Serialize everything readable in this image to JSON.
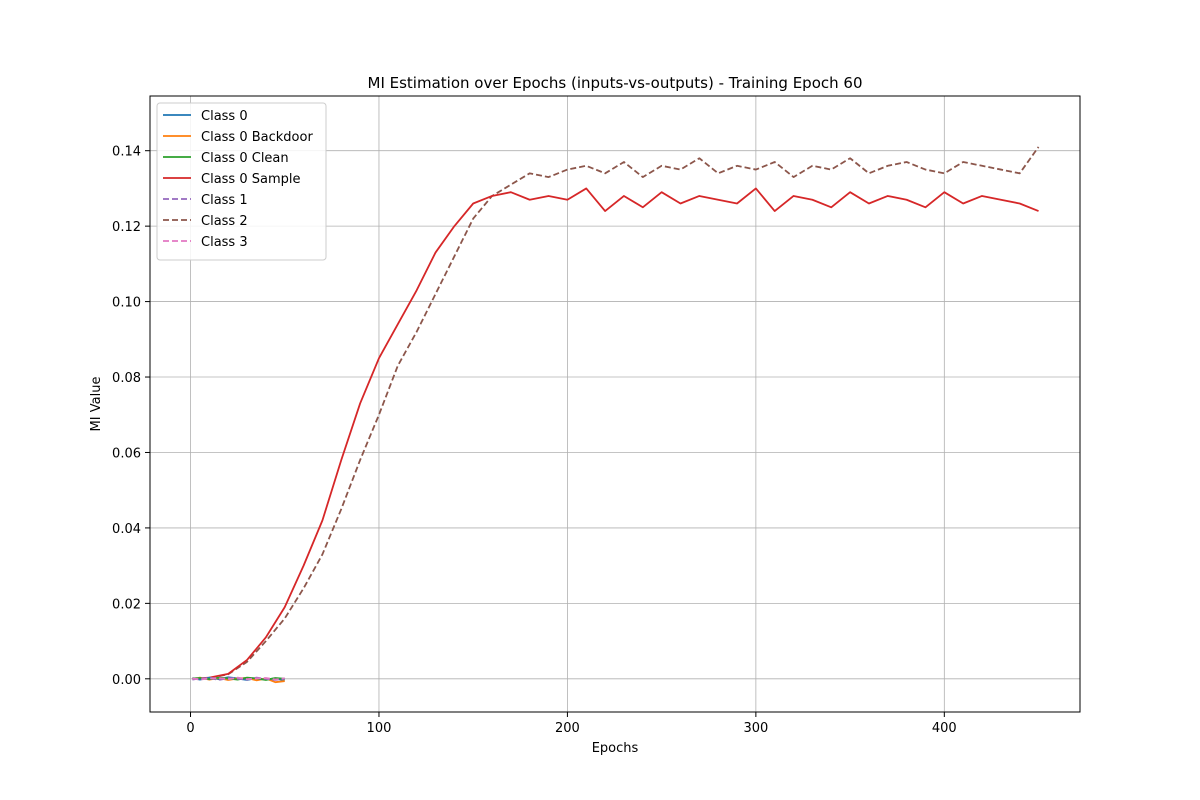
{
  "chart_data": {
    "type": "line",
    "title": "MI Estimation over Epochs (inputs-vs-outputs) - Training Epoch 60",
    "xlabel": "Epochs",
    "ylabel": "MI Value",
    "xlim": [
      -21.5,
      472
    ],
    "ylim": [
      -0.0088,
      0.1545
    ],
    "xticks": [
      0,
      100,
      200,
      300,
      400
    ],
    "xtick_labels": [
      "0",
      "100",
      "200",
      "300",
      "400"
    ],
    "yticks": [
      0.0,
      0.02,
      0.04,
      0.06,
      0.08,
      0.1,
      0.12,
      0.14
    ],
    "ytick_labels": [
      "0.00",
      "0.02",
      "0.04",
      "0.06",
      "0.08",
      "0.10",
      "0.12",
      "0.14"
    ],
    "grid": true,
    "legend_position": "top-left",
    "series": [
      {
        "name": "Class 0",
        "color": "#1f77b4",
        "dash": "solid",
        "x": [
          1,
          5,
          10,
          15,
          20,
          25,
          30,
          35,
          40,
          45,
          50
        ],
        "y": [
          0.0002,
          -0.0002,
          0.0003,
          -0.0001,
          0.0004,
          0.0001,
          -0.0003,
          0.0002,
          -0.0002,
          0.0001,
          -0.0004
        ]
      },
      {
        "name": "Class 0 Backdoor",
        "color": "#ff7f0e",
        "dash": "solid",
        "x": [
          1,
          5,
          10,
          15,
          20,
          25,
          30,
          35,
          40,
          45,
          50
        ],
        "y": [
          -0.0001,
          0.0003,
          -0.0002,
          0.0002,
          -0.0003,
          0.0001,
          0.0002,
          -0.0004,
          0.0001,
          -0.0009,
          -0.0006
        ]
      },
      {
        "name": "Class 0 Clean",
        "color": "#2ca02c",
        "dash": "solid",
        "x": [
          1,
          5,
          10,
          15,
          20,
          25,
          30,
          35,
          40,
          45,
          50
        ],
        "y": [
          0.0001,
          0.0002,
          -0.0001,
          0.0003,
          0.0001,
          -0.0002,
          0.0003,
          0.0001,
          -0.0003,
          0.0002,
          0.0
        ]
      },
      {
        "name": "Class 0 Sample",
        "color": "#d62728",
        "dash": "solid",
        "x": [
          1,
          10,
          20,
          30,
          40,
          50,
          60,
          70,
          80,
          90,
          100,
          110,
          120,
          130,
          140,
          150,
          160,
          170,
          180,
          190,
          200,
          210,
          220,
          230,
          240,
          250,
          260,
          270,
          280,
          290,
          300,
          310,
          320,
          330,
          340,
          350,
          360,
          370,
          380,
          390,
          400,
          410,
          420,
          430,
          440,
          450
        ],
        "y": [
          0.0,
          0.0003,
          0.0013,
          0.005,
          0.011,
          0.019,
          0.03,
          0.042,
          0.058,
          0.073,
          0.085,
          0.094,
          0.103,
          0.113,
          0.12,
          0.126,
          0.128,
          0.129,
          0.127,
          0.128,
          0.127,
          0.13,
          0.124,
          0.128,
          0.125,
          0.129,
          0.126,
          0.128,
          0.127,
          0.126,
          0.13,
          0.124,
          0.128,
          0.127,
          0.125,
          0.129,
          0.126,
          0.128,
          0.127,
          0.125,
          0.129,
          0.126,
          0.128,
          0.127,
          0.126,
          0.124
        ]
      },
      {
        "name": "Class 1",
        "color": "#9467bd",
        "dash": "dashed",
        "x": [
          1,
          5,
          10,
          15,
          20,
          25,
          30,
          35,
          40,
          45,
          50
        ],
        "y": [
          -0.0002,
          0.0001,
          0.0002,
          -0.0003,
          0.0002,
          0.0,
          -0.0002,
          0.0003,
          0.0,
          -0.0003,
          0.0001
        ]
      },
      {
        "name": "Class 2",
        "color": "#8c564b",
        "dash": "dashed",
        "x": [
          1,
          10,
          20,
          30,
          40,
          50,
          60,
          70,
          80,
          90,
          100,
          110,
          120,
          130,
          140,
          150,
          160,
          170,
          180,
          190,
          200,
          210,
          220,
          230,
          240,
          250,
          260,
          270,
          280,
          290,
          300,
          310,
          320,
          330,
          340,
          350,
          360,
          370,
          380,
          390,
          400,
          410,
          420,
          430,
          440,
          450
        ],
        "y": [
          0.0,
          0.0002,
          0.0012,
          0.0045,
          0.01,
          0.016,
          0.024,
          0.033,
          0.045,
          0.058,
          0.07,
          0.083,
          0.092,
          0.102,
          0.112,
          0.122,
          0.128,
          0.131,
          0.134,
          0.133,
          0.135,
          0.136,
          0.134,
          0.137,
          0.133,
          0.136,
          0.135,
          0.138,
          0.134,
          0.136,
          0.135,
          0.137,
          0.133,
          0.136,
          0.135,
          0.138,
          0.134,
          0.136,
          0.137,
          0.135,
          0.134,
          0.137,
          0.136,
          0.135,
          0.134,
          0.141
        ]
      },
      {
        "name": "Class 3",
        "color": "#e377c2",
        "dash": "dashed",
        "x": [
          1,
          5,
          10,
          15,
          20,
          25,
          30,
          35,
          40,
          45,
          50
        ],
        "y": [
          0.0001,
          -0.0002,
          0.0001,
          0.0002,
          -0.0001,
          0.0003,
          -0.0001,
          0.0001,
          0.0002,
          -0.0002,
          0.0001
        ]
      }
    ]
  }
}
